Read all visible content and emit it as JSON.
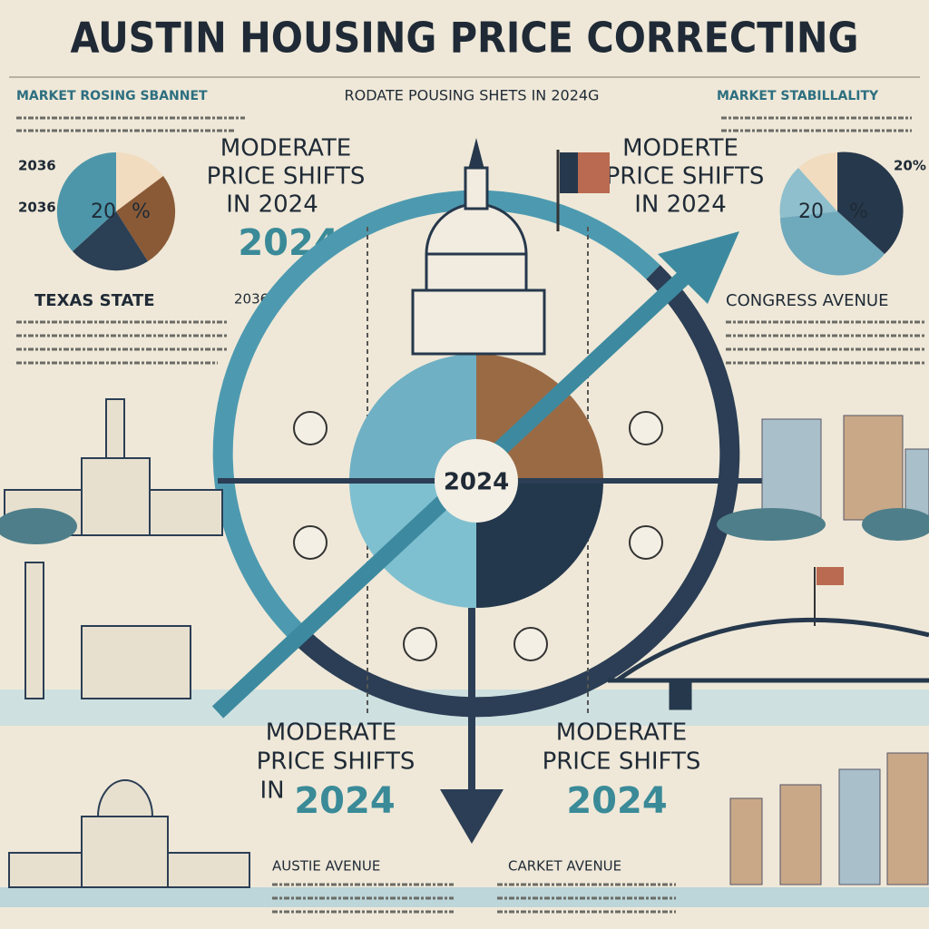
{
  "title": "AUSTIN HOUSING PRICE CORRECTING",
  "banner": {
    "left": "MARKET ROSING SBANNET",
    "center": "RODATE POUSING SHETS IN 2024G",
    "right": "MARKET STABILLALITY"
  },
  "left_pie": {
    "label_a": "20",
    "label_b": "%",
    "side": [
      "2036",
      "2036"
    ]
  },
  "right_pie": {
    "label_a": "20",
    "label_b": "%",
    "side": [
      "20%"
    ]
  },
  "headlines": [
    {
      "lines": [
        "MODERATE",
        "PRICE SHIFTS",
        "IN 2024"
      ],
      "year": "2024"
    },
    {
      "lines": [
        "MODERTE",
        "PRICE SHIFTS",
        "IN 2024"
      ]
    },
    {
      "lines": [
        "MODERATE",
        "PRICE SHIFTS",
        "IN"
      ],
      "year": "2024"
    },
    {
      "lines": [
        "MODERATE",
        "PRICE SHIFTS"
      ],
      "year": "2024"
    }
  ],
  "sections": {
    "texas": "TEXAS STATE",
    "texas_year": "2036",
    "congress": "CONGRESS AVENUE",
    "austin_avenue": "AUSTIE AVENUE",
    "market_avenue": "CARKET AVENUE"
  },
  "center_label": "2024"
}
